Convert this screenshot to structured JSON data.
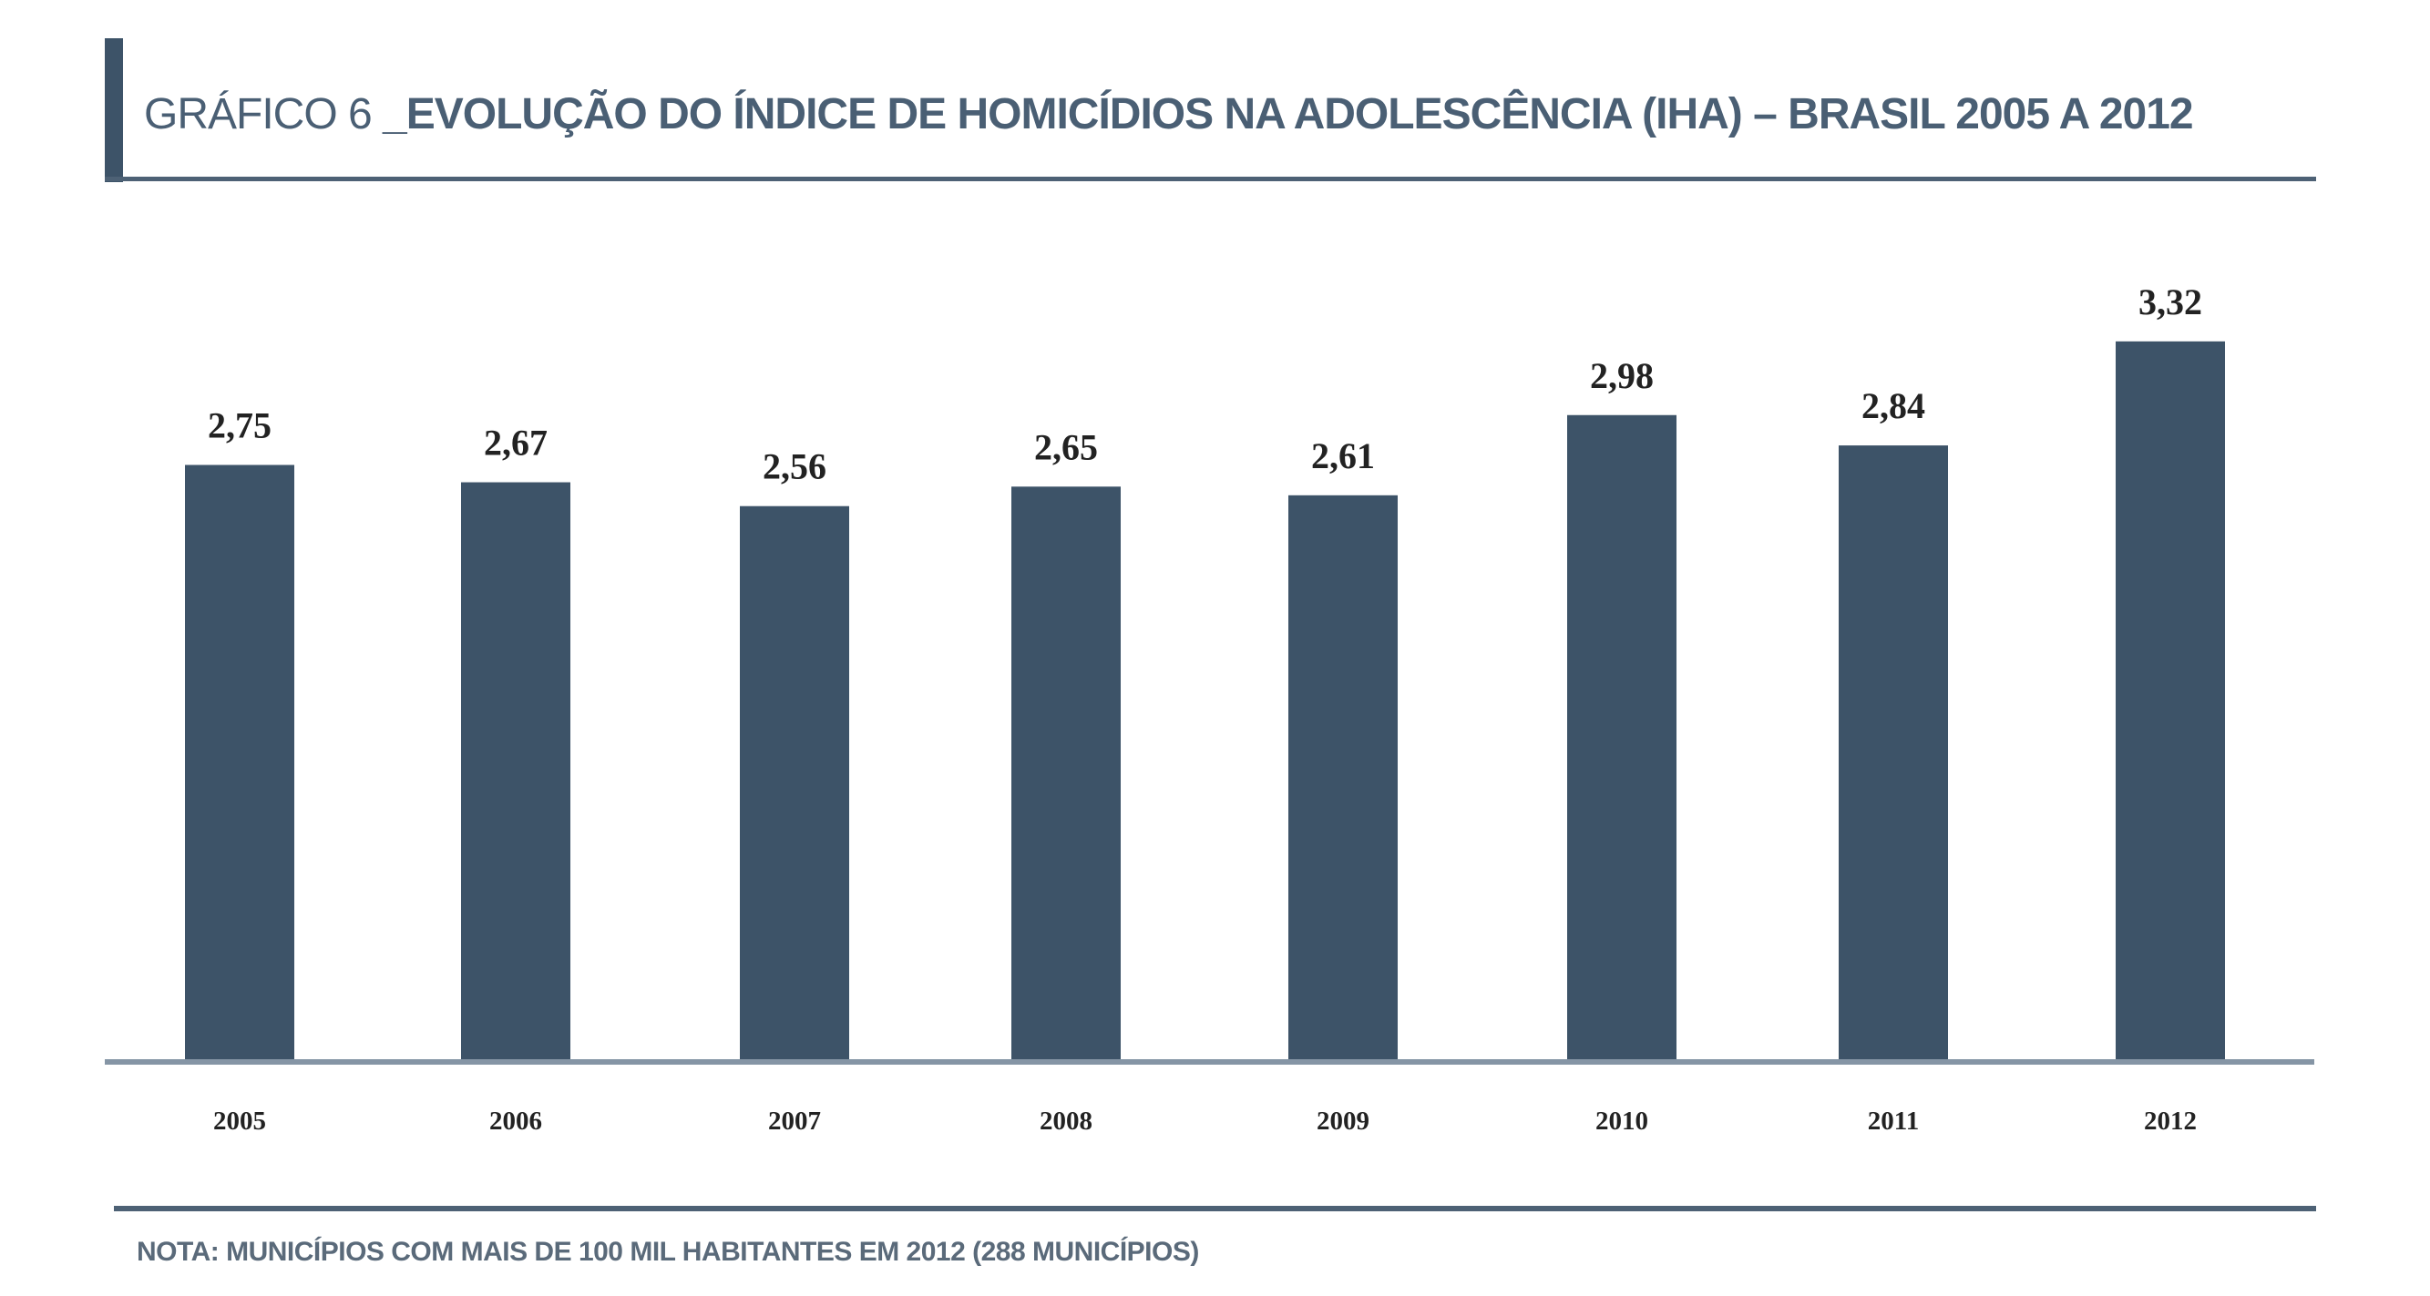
{
  "title": {
    "prefix": "GRÁFICO 6 ",
    "main": "_EVOLUÇÃO DO ÍNDICE DE HOMICÍDIOS NA ADOLESCÊNCIA (IHA) – BRASIL 2005 A 2012"
  },
  "note": "NOTA: MUNICÍPIOS COM MAIS DE 100 MIL HABITANTES EM 2012 (288 MUNICÍPIOS)",
  "colors": {
    "bar": "#3d5368",
    "axis": "#8595a5",
    "title": "#4a5f74",
    "label": "#222222"
  },
  "chart_data": {
    "type": "bar",
    "title": "GRÁFICO 6 _EVOLUÇÃO DO ÍNDICE DE HOMICÍDIOS NA ADOLESCÊNCIA (IHA) – BRASIL 2005 A 2012",
    "categories": [
      "2005",
      "2006",
      "2007",
      "2008",
      "2009",
      "2010",
      "2011",
      "2012"
    ],
    "values": [
      2.75,
      2.67,
      2.56,
      2.65,
      2.61,
      2.98,
      2.84,
      3.32
    ],
    "value_labels": [
      "2,75",
      "2,67",
      "2,56",
      "2,65",
      "2,61",
      "2,98",
      "2,84",
      "3,32"
    ],
    "xlabel": "",
    "ylabel": "",
    "ylim": [
      0,
      3.5
    ],
    "grid": false
  }
}
